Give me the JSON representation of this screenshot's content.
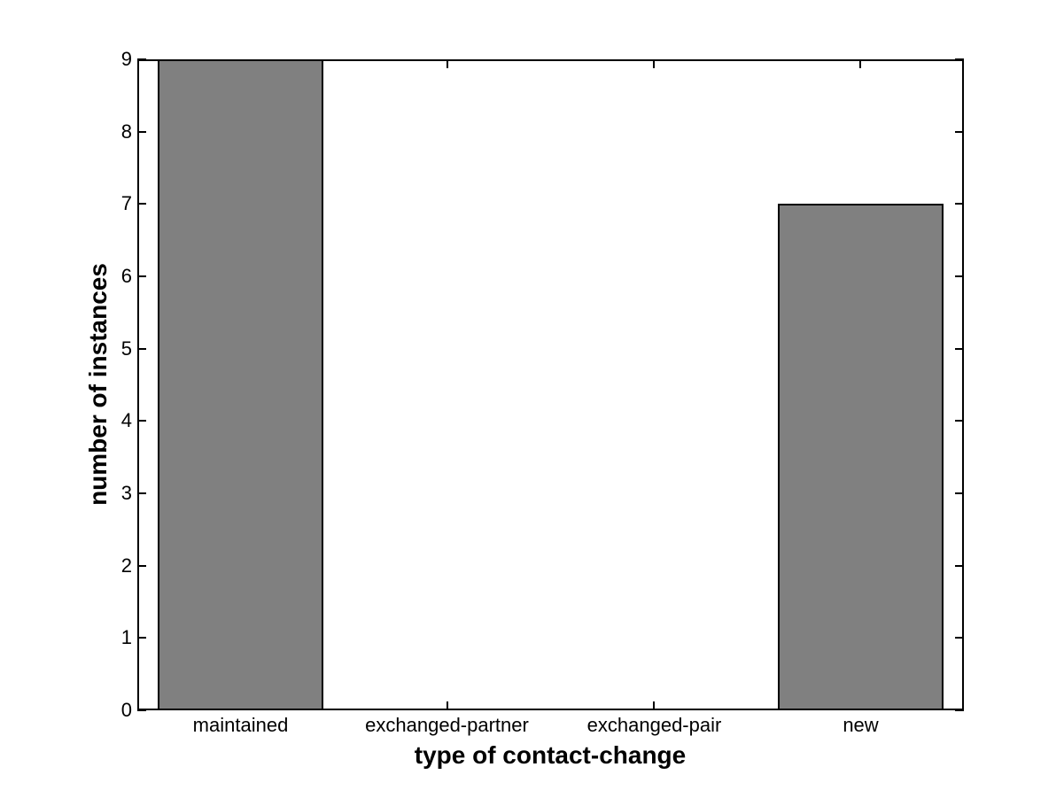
{
  "figure": {
    "background": "#ffffff"
  },
  "chart_data": {
    "type": "bar",
    "categories": [
      "maintained",
      "exchanged-partner",
      "exchanged-pair",
      "new"
    ],
    "values": [
      9,
      0,
      0,
      7
    ],
    "xlabel": "type of contact-change",
    "ylabel": "number of instances",
    "ylim": [
      0,
      9
    ],
    "yticks": [
      0,
      1,
      2,
      3,
      4,
      5,
      6,
      7,
      8,
      9
    ],
    "bar_color": "#808080",
    "bar_edge_color": "#000000",
    "axis_color": "#000000",
    "text_color": "#000000",
    "bar_width_fraction": 0.8,
    "grid": false,
    "legend": null,
    "tick_direction": "in",
    "box": true,
    "title": ""
  }
}
